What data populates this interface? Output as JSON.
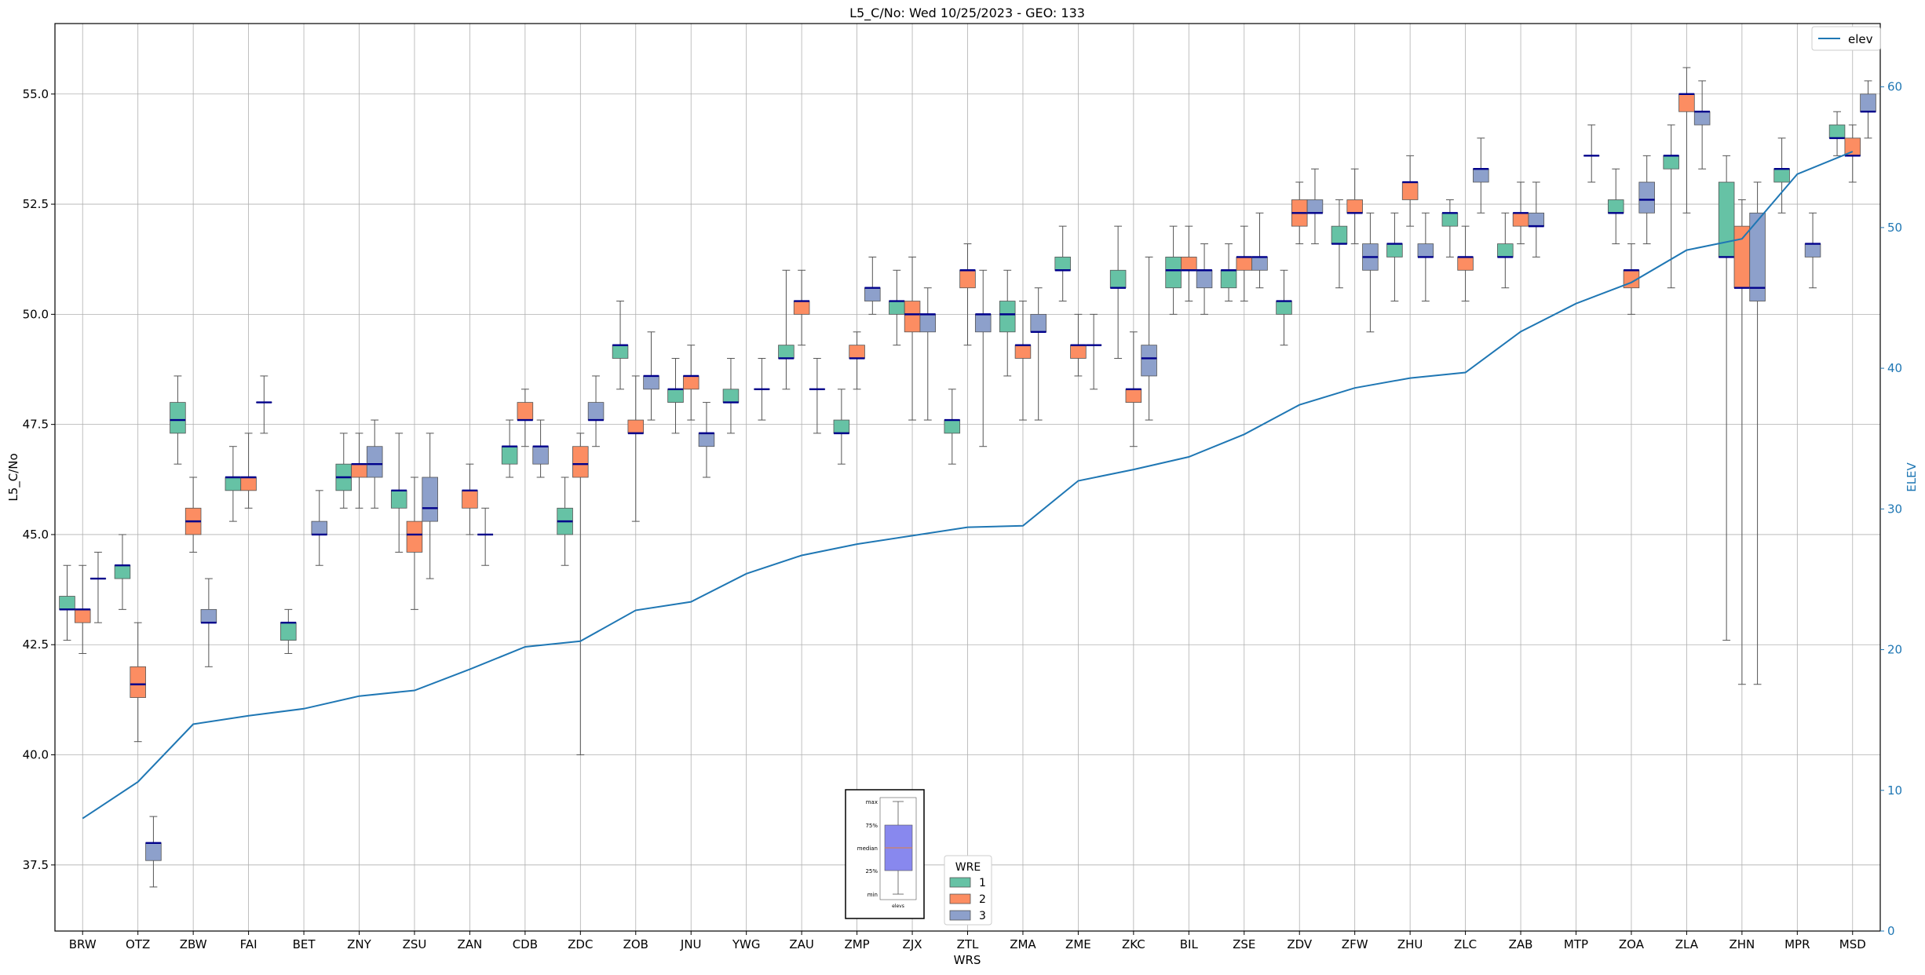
{
  "chart_data": {
    "type": "box",
    "title": "L5_C/No: Wed 10/25/2023 - GEO: 133",
    "xlabel": "WRS",
    "ylabel": "L5_C/No",
    "y2label": "ELEV",
    "ylim": [
      36.0,
      56.6
    ],
    "y2lim": [
      0,
      64.5
    ],
    "yticks": [
      "37.5",
      "40.0",
      "42.5",
      "45.0",
      "47.5",
      "50.0",
      "52.5",
      "55.0"
    ],
    "y2ticks": [
      "0",
      "10",
      "20",
      "30",
      "40",
      "50",
      "60"
    ],
    "grid": true,
    "categories": [
      "BRW",
      "OTZ",
      "ZBW",
      "FAI",
      "BET",
      "ZNY",
      "ZSU",
      "ZAN",
      "CDB",
      "ZDC",
      "ZOB",
      "JNU",
      "YWG",
      "ZAU",
      "ZMP",
      "ZJX",
      "ZTL",
      "ZMA",
      "ZME",
      "ZKC",
      "BIL",
      "ZSE",
      "ZDV",
      "ZFW",
      "ZHU",
      "ZLC",
      "ZAB",
      "MTP",
      "ZOA",
      "ZLA",
      "ZHN",
      "MPR",
      "MSD"
    ],
    "legend": {
      "title": "WRE",
      "entries": [
        {
          "label": "1",
          "color": "#66c2a5"
        },
        {
          "label": "2",
          "color": "#fc8d62"
        },
        {
          "label": "3",
          "color": "#8da0cb"
        }
      ]
    },
    "line_legend": {
      "label": "elev",
      "color": "#1f77b4"
    },
    "series": [
      {
        "name": "1",
        "color": "#66c2a5",
        "boxes": [
          [
            42.6,
            43.3,
            43.3,
            43.6,
            44.3
          ],
          [
            43.3,
            44.0,
            44.3,
            44.3,
            45.0
          ],
          [
            46.6,
            47.3,
            47.6,
            48.0,
            48.6
          ],
          [
            45.3,
            46.0,
            46.3,
            46.3,
            47.0
          ],
          [
            42.3,
            42.6,
            43.0,
            43.0,
            43.3
          ],
          [
            45.6,
            46.0,
            46.3,
            46.6,
            47.3
          ],
          [
            44.6,
            45.6,
            46.0,
            46.0,
            47.3
          ],
          null,
          [
            46.3,
            46.6,
            47.0,
            47.0,
            47.6
          ],
          [
            44.3,
            45.0,
            45.3,
            45.6,
            46.3
          ],
          [
            48.3,
            49.0,
            49.3,
            49.3,
            50.3
          ],
          [
            47.3,
            48.0,
            48.3,
            48.3,
            49.0
          ],
          [
            47.3,
            48.0,
            48.0,
            48.3,
            49.0
          ],
          [
            48.3,
            49.0,
            49.0,
            49.3,
            51.0
          ],
          [
            46.6,
            47.3,
            47.3,
            47.6,
            48.3
          ],
          [
            49.3,
            50.0,
            50.3,
            50.3,
            51.0
          ],
          [
            46.6,
            47.3,
            47.6,
            47.6,
            48.3
          ],
          [
            48.6,
            49.6,
            50.0,
            50.3,
            51.0
          ],
          [
            50.3,
            51.0,
            51.0,
            51.3,
            52.0
          ],
          [
            49.0,
            50.6,
            50.6,
            51.0,
            52.0
          ],
          [
            50.0,
            50.6,
            51.0,
            51.3,
            52.0
          ],
          [
            50.3,
            50.6,
            51.0,
            51.0,
            51.6
          ],
          [
            49.3,
            50.0,
            50.3,
            50.3,
            51.0
          ],
          [
            50.6,
            51.6,
            51.6,
            52.0,
            52.6
          ],
          [
            50.3,
            51.3,
            51.6,
            51.6,
            52.3
          ],
          [
            51.3,
            52.0,
            52.3,
            52.3,
            52.6
          ],
          [
            50.6,
            51.3,
            51.3,
            51.6,
            52.3
          ],
          null,
          [
            51.6,
            52.3,
            52.3,
            52.6,
            53.3
          ],
          [
            50.6,
            53.3,
            53.6,
            53.6,
            54.3
          ],
          [
            42.6,
            51.3,
            51.3,
            53.0,
            53.6
          ],
          [
            52.3,
            53.0,
            53.3,
            53.3,
            54.0
          ],
          [
            53.6,
            54.0,
            54.0,
            54.3,
            54.6
          ]
        ]
      },
      {
        "name": "2",
        "color": "#fc8d62",
        "boxes": [
          [
            42.3,
            43.0,
            43.3,
            43.3,
            44.3
          ],
          [
            40.3,
            41.3,
            41.6,
            42.0,
            43.0
          ],
          [
            44.6,
            45.0,
            45.3,
            45.6,
            46.3
          ],
          [
            45.6,
            46.0,
            46.3,
            46.3,
            47.3
          ],
          null,
          [
            45.6,
            46.3,
            46.6,
            46.6,
            47.3
          ],
          [
            43.3,
            44.6,
            45.0,
            45.3,
            46.3
          ],
          [
            45.0,
            45.6,
            46.0,
            46.0,
            46.6
          ],
          [
            47.0,
            47.6,
            47.6,
            48.0,
            48.3
          ],
          [
            40.0,
            46.3,
            46.6,
            47.0,
            47.3
          ],
          [
            45.3,
            47.3,
            47.3,
            47.6,
            48.6
          ],
          [
            47.6,
            48.3,
            48.6,
            48.6,
            49.3
          ],
          null,
          [
            49.3,
            50.0,
            50.3,
            50.3,
            51.0
          ],
          [
            48.3,
            49.0,
            49.0,
            49.3,
            49.6
          ],
          [
            47.6,
            49.6,
            50.0,
            50.3,
            51.3
          ],
          [
            49.3,
            50.6,
            51.0,
            51.0,
            51.6
          ],
          [
            47.6,
            49.0,
            49.3,
            49.3,
            50.3
          ],
          [
            48.6,
            49.0,
            49.3,
            49.3,
            50.0
          ],
          [
            47.0,
            48.0,
            48.3,
            48.3,
            49.6
          ],
          [
            50.3,
            51.0,
            51.0,
            51.3,
            52.0
          ],
          [
            50.3,
            51.0,
            51.3,
            51.3,
            52.0
          ],
          [
            51.6,
            52.0,
            52.3,
            52.6,
            53.0
          ],
          [
            51.6,
            52.3,
            52.3,
            52.6,
            53.3
          ],
          [
            52.0,
            52.6,
            53.0,
            53.0,
            53.6
          ],
          [
            50.3,
            51.0,
            51.3,
            51.3,
            52.0
          ],
          [
            51.6,
            52.0,
            52.3,
            52.3,
            53.0
          ],
          null,
          [
            50.0,
            50.6,
            51.0,
            51.0,
            51.6
          ],
          [
            52.3,
            54.6,
            55.0,
            55.0,
            55.6
          ],
          [
            41.6,
            50.6,
            50.6,
            52.0,
            52.6
          ],
          null,
          [
            53.0,
            53.6,
            53.6,
            54.0,
            54.3
          ]
        ]
      },
      {
        "name": "3",
        "color": "#8da0cb",
        "boxes": [
          [
            43.0,
            44.0,
            44.0,
            44.0,
            44.6
          ],
          [
            37.0,
            37.6,
            38.0,
            38.0,
            38.6
          ],
          [
            42.0,
            43.0,
            43.0,
            43.3,
            44.0
          ],
          [
            47.3,
            48.0,
            48.0,
            48.0,
            48.6
          ],
          [
            44.3,
            45.0,
            45.0,
            45.3,
            46.0
          ],
          [
            45.6,
            46.3,
            46.6,
            47.0,
            47.6
          ],
          [
            44.0,
            45.3,
            45.6,
            46.3,
            47.3
          ],
          [
            44.3,
            45.0,
            45.0,
            45.0,
            45.6
          ],
          [
            46.3,
            46.6,
            47.0,
            47.0,
            47.6
          ],
          [
            47.0,
            47.6,
            47.6,
            48.0,
            48.6
          ],
          [
            47.6,
            48.3,
            48.6,
            48.6,
            49.6
          ],
          [
            46.3,
            47.0,
            47.3,
            47.3,
            48.0
          ],
          [
            47.6,
            48.3,
            48.3,
            48.3,
            49.0
          ],
          [
            47.3,
            48.3,
            48.3,
            48.3,
            49.0
          ],
          [
            50.0,
            50.3,
            50.6,
            50.6,
            51.3
          ],
          [
            47.6,
            49.6,
            50.0,
            50.0,
            50.6
          ],
          [
            47.0,
            49.6,
            50.0,
            50.0,
            51.0
          ],
          [
            47.6,
            49.6,
            49.6,
            50.0,
            50.6
          ],
          [
            48.3,
            49.3,
            49.3,
            49.3,
            50.0
          ],
          [
            47.6,
            48.6,
            49.0,
            49.3,
            51.3
          ],
          [
            50.0,
            50.6,
            51.0,
            51.0,
            51.6
          ],
          [
            50.6,
            51.0,
            51.3,
            51.3,
            52.3
          ],
          [
            51.6,
            52.3,
            52.3,
            52.6,
            53.3
          ],
          [
            49.6,
            51.0,
            51.3,
            51.6,
            52.3
          ],
          [
            50.3,
            51.3,
            51.3,
            51.6,
            52.3
          ],
          [
            52.3,
            53.0,
            53.3,
            53.3,
            54.0
          ],
          [
            51.3,
            52.0,
            52.0,
            52.3,
            53.0
          ],
          [
            53.0,
            53.6,
            53.6,
            53.6,
            54.3
          ],
          [
            51.6,
            52.3,
            52.6,
            53.0,
            53.6
          ],
          [
            53.3,
            54.3,
            54.6,
            54.6,
            55.3
          ],
          [
            41.6,
            50.3,
            50.6,
            52.3,
            53.0
          ],
          [
            50.6,
            51.3,
            51.6,
            51.6,
            52.3
          ],
          [
            54.0,
            54.6,
            54.6,
            55.0,
            55.3
          ]
        ]
      }
    ],
    "elev_line": {
      "name": "elev",
      "color": "#1f77b4",
      "values": [
        8.0,
        10.6,
        14.7,
        15.3,
        15.8,
        16.7,
        17.1,
        18.6,
        20.2,
        20.6,
        22.8,
        23.4,
        25.4,
        26.7,
        27.5,
        28.1,
        28.7,
        28.8,
        32.0,
        32.8,
        33.7,
        35.3,
        37.4,
        38.6,
        39.3,
        39.7,
        42.6,
        44.6,
        46.1,
        48.4,
        49.2,
        53.8,
        55.4
      ]
    },
    "inset_key": {
      "labels": [
        "max",
        "75%",
        "median",
        "25%",
        "min"
      ],
      "xlabel": "elevs"
    }
  }
}
